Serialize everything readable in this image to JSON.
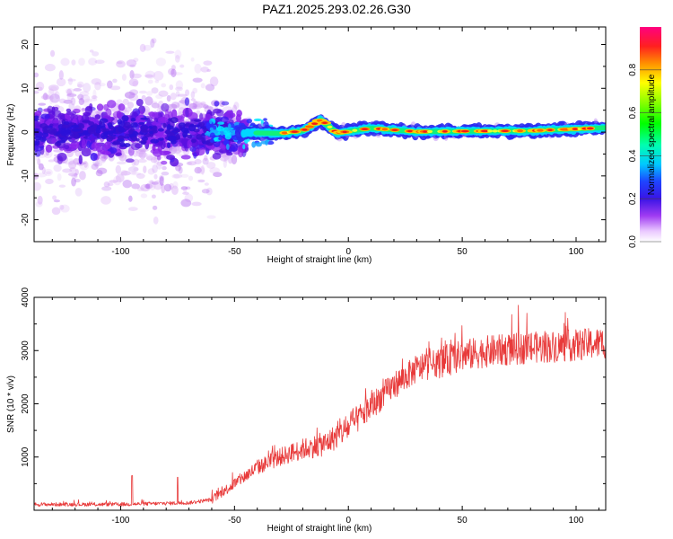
{
  "title": "PAZ1.2025.293.02.26.G30",
  "chart_data": [
    {
      "type": "heatmap",
      "xlabel": "Height of straight line (km)",
      "ylabel": "Frequency (Hz)",
      "xlim": [
        -138,
        113
      ],
      "ylim": [
        -25,
        24
      ],
      "xticks": [
        -100,
        -50,
        0,
        50,
        100
      ],
      "xtick_labels": [
        "-100",
        "-50",
        "0",
        "50",
        "100"
      ],
      "yticks": [
        -20,
        -10,
        0,
        10,
        20
      ],
      "ytick_labels": [
        "-20",
        "-10",
        "0",
        "10",
        "20"
      ],
      "colorbar": {
        "label": "Normalized spectral amplitude",
        "range": [
          0,
          1
        ],
        "ticks": [
          0.0,
          0.2,
          0.4,
          0.6,
          0.8
        ],
        "tick_labels": [
          "0.0",
          "0.2",
          "0.4",
          "0.6",
          "0.8"
        ]
      },
      "ridge": [
        {
          "x": -55,
          "f": 0.0
        },
        {
          "x": -30,
          "f": -0.3
        },
        {
          "x": -20,
          "f": 0.3
        },
        {
          "x": -12,
          "f": 2.8
        },
        {
          "x": -5,
          "f": -0.2
        },
        {
          "x": 10,
          "f": 0.9
        },
        {
          "x": 30,
          "f": 0.1
        },
        {
          "x": 50,
          "f": 0.2
        },
        {
          "x": 80,
          "f": 0.3
        },
        {
          "x": 113,
          "f": 1.0
        }
      ]
    },
    {
      "type": "line",
      "xlabel": "Height of straight line (km)",
      "ylabel": "SNR (10 * v/v)",
      "xlim": [
        -138,
        113
      ],
      "ylim": [
        0,
        4000
      ],
      "xticks": [
        -100,
        -50,
        0,
        50,
        100
      ],
      "xtick_labels": [
        "-100",
        "-50",
        "0",
        "50",
        "100"
      ],
      "yticks": [
        1000,
        2000,
        3000,
        4000
      ],
      "ytick_labels": [
        "1000",
        "2000",
        "3000",
        "4000"
      ],
      "color": "#e83a3a",
      "trend": [
        {
          "x": -138,
          "y": 110
        },
        {
          "x": -100,
          "y": 110
        },
        {
          "x": -70,
          "y": 140
        },
        {
          "x": -60,
          "y": 200
        },
        {
          "x": -50,
          "y": 500
        },
        {
          "x": -40,
          "y": 800
        },
        {
          "x": -30,
          "y": 1000
        },
        {
          "x": -20,
          "y": 1150
        },
        {
          "x": -10,
          "y": 1250
        },
        {
          "x": 0,
          "y": 1550
        },
        {
          "x": 10,
          "y": 1950
        },
        {
          "x": 20,
          "y": 2350
        },
        {
          "x": 30,
          "y": 2650
        },
        {
          "x": 40,
          "y": 2780
        },
        {
          "x": 50,
          "y": 2900
        },
        {
          "x": 60,
          "y": 2980
        },
        {
          "x": 80,
          "y": 3050
        },
        {
          "x": 100,
          "y": 3100
        },
        {
          "x": 113,
          "y": 3150
        }
      ],
      "spikes": [
        {
          "x": -95,
          "y": 650
        },
        {
          "x": -75,
          "y": 620
        }
      ]
    }
  ]
}
